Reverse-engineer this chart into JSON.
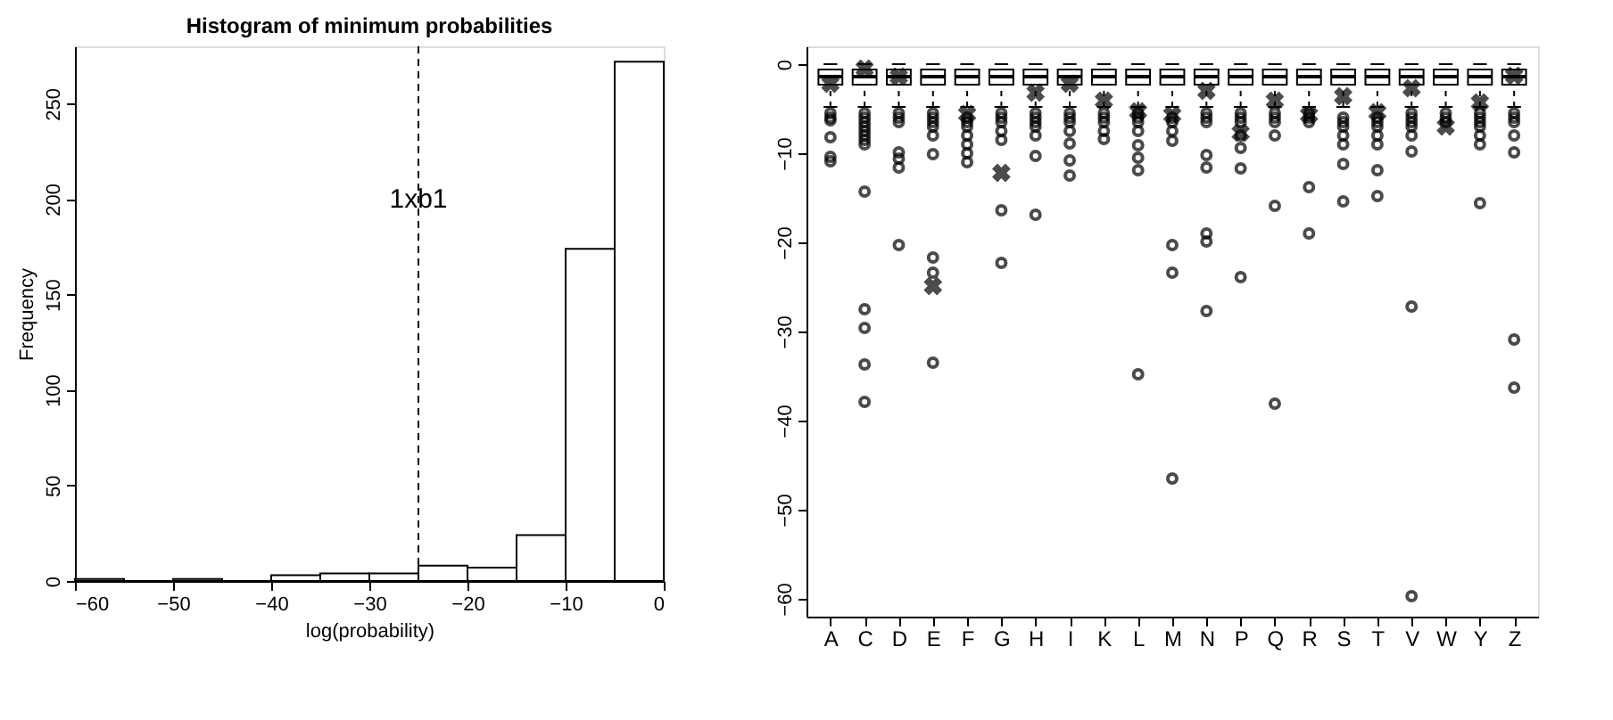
{
  "chart_data": [
    {
      "type": "histogram",
      "title": "Histogram of minimum probabilities",
      "xlabel": "log(probability)",
      "ylabel": "Frequency",
      "bins": [
        -60,
        -55,
        -50,
        -45,
        -40,
        -35,
        -30,
        -25,
        -20,
        -15,
        -10,
        -5,
        0
      ],
      "values": [
        1,
        0,
        1,
        0,
        3,
        4,
        4,
        8,
        7,
        24,
        174,
        272
      ],
      "xlim": [
        -60,
        0
      ],
      "xticks": [
        -60,
        -50,
        -40,
        -30,
        -20,
        -10,
        0
      ],
      "ylim": [
        0,
        280
      ],
      "yticks": [
        0,
        50,
        100,
        150,
        200,
        250
      ],
      "ref_lines": [
        {
          "axis": "x",
          "value": -25,
          "line_style": "dashed"
        }
      ],
      "annotations": [
        {
          "text": "1xb1",
          "x": -25,
          "y": 200
        }
      ],
      "grid": false
    },
    {
      "type": "box",
      "categories": [
        "A",
        "C",
        "D",
        "E",
        "F",
        "G",
        "H",
        "I",
        "K",
        "L",
        "M",
        "N",
        "P",
        "Q",
        "R",
        "S",
        "T",
        "V",
        "W",
        "Y",
        "Z"
      ],
      "boxes": [
        {
          "low": -4.8,
          "q1": -2.3,
          "median": -1.4,
          "q3": -0.6,
          "high": 0,
          "outliers": [
            -5.5,
            -6.0,
            -6.3,
            -8.2,
            -10.4,
            -10.9
          ]
        },
        {
          "low": -4.8,
          "q1": -2.3,
          "median": -1.4,
          "q3": -0.6,
          "high": 0,
          "outliers": [
            -5.5,
            -6.0,
            -6.5,
            -7.0,
            -7.5,
            -8.0,
            -8.5,
            -9.0,
            -14.3,
            -27.5,
            -29.6,
            -33.7,
            -37.9
          ]
        },
        {
          "low": -4.8,
          "q1": -2.3,
          "median": -1.4,
          "q3": -0.6,
          "high": 0,
          "outliers": [
            -5.5,
            -6.0,
            -6.5,
            -9.9,
            -10.6,
            -11.6,
            -20.3
          ]
        },
        {
          "low": -4.8,
          "q1": -2.3,
          "median": -1.4,
          "q3": -0.6,
          "high": 0,
          "outliers": [
            -5.5,
            -6.0,
            -6.5,
            -7.0,
            -8.0,
            -10.1,
            -21.7,
            -23.4,
            -33.5
          ]
        },
        {
          "low": -4.8,
          "q1": -2.3,
          "median": -1.4,
          "q3": -0.6,
          "high": 0,
          "outliers": [
            -6.0,
            -6.5,
            -7.0,
            -8.0,
            -9.0,
            -10.0,
            -11.0
          ]
        },
        {
          "low": -4.8,
          "q1": -2.3,
          "median": -1.4,
          "q3": -0.6,
          "high": 0,
          "outliers": [
            -5.5,
            -6.0,
            -6.5,
            -7.5,
            -8.5,
            -16.4,
            -22.3
          ]
        },
        {
          "low": -4.8,
          "q1": -2.3,
          "median": -1.4,
          "q3": -0.6,
          "high": 0,
          "outliers": [
            -5.5,
            -6.0,
            -6.5,
            -7.0,
            -8.0,
            -10.3,
            -16.9
          ]
        },
        {
          "low": -4.8,
          "q1": -2.3,
          "median": -1.4,
          "q3": -0.6,
          "high": 0,
          "outliers": [
            -5.5,
            -6.0,
            -6.5,
            -7.5,
            -8.9,
            -10.8,
            -12.5
          ]
        },
        {
          "low": -4.8,
          "q1": -2.3,
          "median": -1.4,
          "q3": -0.6,
          "high": 0,
          "outliers": [
            -5.5,
            -6.0,
            -6.5,
            -7.5,
            -8.4
          ]
        },
        {
          "low": -4.8,
          "q1": -2.3,
          "median": -1.4,
          "q3": -0.6,
          "high": 0,
          "outliers": [
            -5.5,
            -6.0,
            -6.5,
            -7.5,
            -9.1,
            -10.5,
            -11.9,
            -34.8
          ]
        },
        {
          "low": -4.8,
          "q1": -2.3,
          "median": -1.4,
          "q3": -0.6,
          "high": 0,
          "outliers": [
            -6.0,
            -6.5,
            -7.5,
            -8.6,
            -20.3,
            -23.4,
            -46.5
          ]
        },
        {
          "low": -4.8,
          "q1": -2.3,
          "median": -1.4,
          "q3": -0.6,
          "high": 0,
          "outliers": [
            -5.5,
            -6.0,
            -6.5,
            -10.2,
            -11.6,
            -19.0,
            -19.9,
            -27.7
          ]
        },
        {
          "low": -4.8,
          "q1": -2.3,
          "median": -1.4,
          "q3": -0.6,
          "high": 0,
          "outliers": [
            -5.5,
            -6.0,
            -6.5,
            -8.0,
            -9.4,
            -11.7,
            -23.9
          ]
        },
        {
          "low": -4.8,
          "q1": -2.3,
          "median": -1.4,
          "q3": -0.6,
          "high": 0,
          "outliers": [
            -5.5,
            -6.0,
            -6.5,
            -8.0,
            -15.9,
            -38.1
          ]
        },
        {
          "low": -4.8,
          "q1": -2.3,
          "median": -1.4,
          "q3": -0.6,
          "high": 0,
          "outliers": [
            -5.5,
            -6.0,
            -6.5,
            -13.8,
            -19.0
          ]
        },
        {
          "low": -4.8,
          "q1": -2.3,
          "median": -1.4,
          "q3": -0.6,
          "high": 0,
          "outliers": [
            -6.0,
            -6.5,
            -7.0,
            -8.0,
            -9.0,
            -11.2,
            -15.4
          ]
        },
        {
          "low": -4.8,
          "q1": -2.3,
          "median": -1.4,
          "q3": -0.6,
          "high": 0,
          "outliers": [
            -6.0,
            -6.5,
            -7.0,
            -8.0,
            -9.0,
            -11.9,
            -14.8
          ]
        },
        {
          "low": -4.8,
          "q1": -2.3,
          "median": -1.4,
          "q3": -0.6,
          "high": 0,
          "outliers": [
            -5.5,
            -6.0,
            -6.5,
            -7.0,
            -8.0,
            -9.8,
            -27.2,
            -59.7
          ]
        },
        {
          "low": -4.8,
          "q1": -2.3,
          "median": -1.4,
          "q3": -0.6,
          "high": 0,
          "outliers": [
            -5.5,
            -6.0,
            -6.5
          ]
        },
        {
          "low": -4.8,
          "q1": -2.3,
          "median": -1.4,
          "q3": -0.6,
          "high": 0,
          "outliers": [
            -5.5,
            -6.0,
            -6.5,
            -7.0,
            -8.0,
            -9.0,
            -15.6
          ]
        },
        {
          "low": -4.8,
          "q1": -2.3,
          "median": -1.4,
          "q3": -0.6,
          "high": 0,
          "outliers": [
            -5.5,
            -6.0,
            -6.5,
            -8.0,
            -9.9,
            -30.9,
            -36.3
          ]
        }
      ],
      "series": [
        {
          "type": "scatter",
          "marker": "cross",
          "color": "#000000",
          "x": [
            "A",
            "C",
            "D",
            "E",
            "F",
            "G",
            "H",
            "I",
            "K",
            "L",
            "M",
            "N",
            "P",
            "Q",
            "R",
            "S",
            "T",
            "V",
            "W",
            "Y",
            "Z"
          ],
          "values": [
            -2.2,
            -0.5,
            -1.4,
            -24.9,
            -5.6,
            -12.2,
            -3.2,
            -2.2,
            -4.1,
            -5.3,
            -5.7,
            -3.0,
            -7.7,
            -4.1,
            -5.7,
            -3.6,
            -5.4,
            -2.7,
            -7.0,
            -4.3,
            -1.3
          ]
        }
      ],
      "ylim": [
        -62,
        2
      ],
      "yticks": [
        0,
        -10,
        -20,
        -30,
        -40,
        -50,
        -60
      ],
      "grid": false
    }
  ]
}
